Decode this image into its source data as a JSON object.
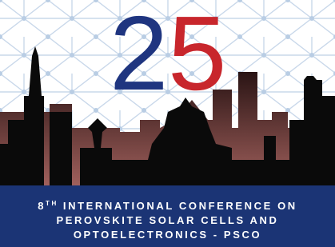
{
  "logo": {
    "digits": [
      "2",
      "5"
    ]
  },
  "banner": {
    "ordinal": "8",
    "suffix": "TH",
    "lines": [
      "INTERNATIONAL CONFERENCE ON",
      "PEROVSKITE SOLAR CELLS AND",
      "OPTOELECTRONICS - PSCO"
    ]
  }
}
